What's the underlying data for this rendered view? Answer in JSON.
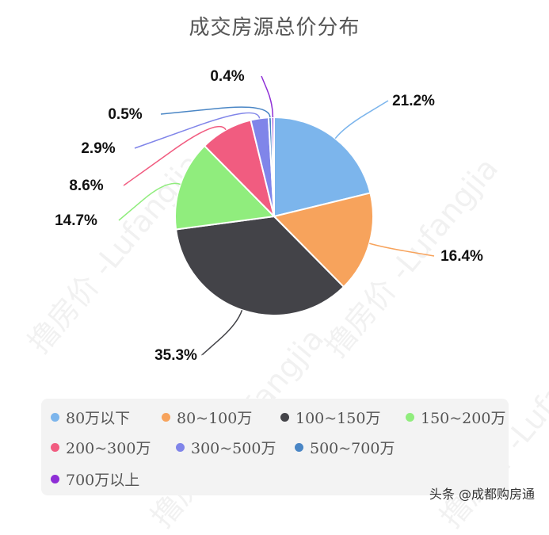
{
  "chart_data": {
    "type": "pie",
    "title": "成交房源总价分布",
    "categories": [
      "80万以下",
      "80~100万",
      "100~150万",
      "150~200万",
      "200~300万",
      "300~500万",
      "500~700万",
      "700万以上"
    ],
    "values": [
      21.2,
      16.4,
      35.3,
      14.7,
      8.6,
      2.9,
      0.5,
      0.4
    ],
    "value_labels": [
      "21.2%",
      "16.4%",
      "35.3%",
      "14.7%",
      "8.6%",
      "2.9%",
      "0.5%",
      "0.4%"
    ],
    "colors": [
      "#7cb5ec",
      "#f7a35c",
      "#434348",
      "#90ed7d",
      "#f15c80",
      "#8085e9",
      "#4a86c5",
      "#8e2ed6"
    ],
    "legend_position": "bottom",
    "start_angle_deg": 0,
    "direction": "clockwise"
  },
  "watermark_text": "撸房价 -Lufangjia",
  "footer_credit": "头条 @成都购房通"
}
